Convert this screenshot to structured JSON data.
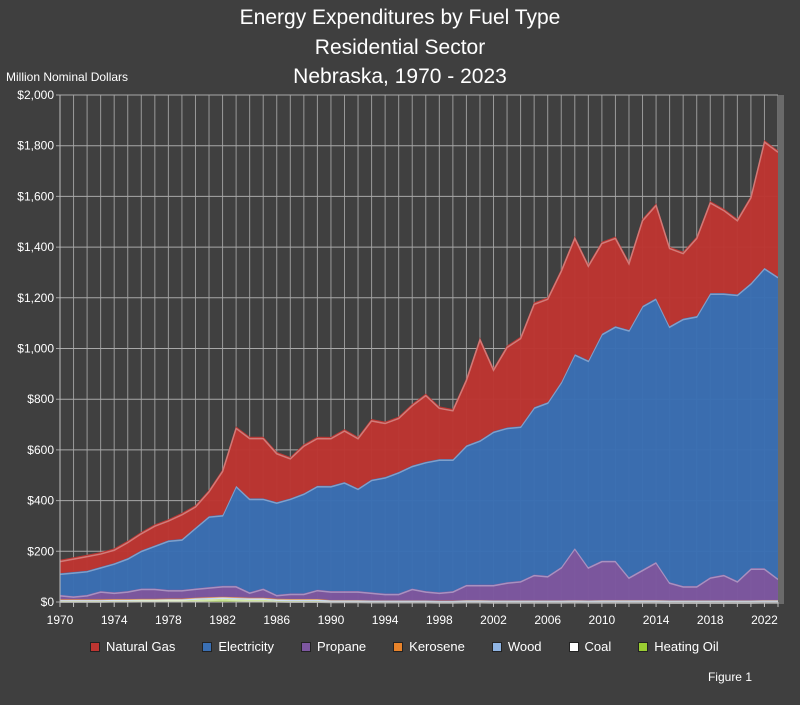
{
  "chart_data": {
    "type": "area",
    "stacked": true,
    "title": [
      "Energy Expenditures by Fuel Type",
      "Residential Sector",
      "Nebraska, 1970 - 2023"
    ],
    "ylabel": "Million Nominal Dollars",
    "ylim": [
      0,
      2000
    ],
    "yticks": [
      "$0",
      "$200",
      "$400",
      "$600",
      "$800",
      "$1,000",
      "$1,200",
      "$1,400",
      "$1,600",
      "$1,800",
      "$2,000"
    ],
    "xticks": [
      "1970",
      "1974",
      "1978",
      "1982",
      "1986",
      "1990",
      "1994",
      "1998",
      "2002",
      "2006",
      "2010",
      "2014",
      "2018",
      "2022"
    ],
    "grid": true,
    "legend": "bottom",
    "x": [
      1970,
      1971,
      1972,
      1973,
      1974,
      1975,
      1976,
      1977,
      1978,
      1979,
      1980,
      1981,
      1982,
      1983,
      1984,
      1985,
      1986,
      1987,
      1988,
      1989,
      1990,
      1991,
      1992,
      1993,
      1994,
      1995,
      1996,
      1997,
      1998,
      1999,
      2000,
      2001,
      2002,
      2003,
      2004,
      2005,
      2006,
      2007,
      2008,
      2009,
      2010,
      2011,
      2012,
      2013,
      2014,
      2015,
      2016,
      2017,
      2018,
      2019,
      2020,
      2021,
      2022,
      2023
    ],
    "series": [
      {
        "name": "Heating Oil",
        "color": "#9acd32",
        "values": [
          5,
          5,
          5,
          5,
          6,
          6,
          7,
          7,
          8,
          8,
          10,
          12,
          14,
          12,
          10,
          10,
          6,
          5,
          5,
          5,
          4,
          4,
          4,
          3,
          3,
          3,
          3,
          3,
          2,
          2,
          3,
          3,
          2,
          2,
          2,
          2,
          2,
          2,
          3,
          2,
          2,
          2,
          2,
          2,
          2,
          1,
          1,
          1,
          1,
          1,
          1,
          1,
          2,
          2
        ]
      },
      {
        "name": "Coal",
        "color": "#ffffff",
        "values": [
          1,
          1,
          1,
          1,
          1,
          1,
          1,
          1,
          1,
          1,
          0.5,
          0.5,
          0.5,
          0.5,
          0.5,
          0.5,
          0.5,
          0.5,
          0.5,
          0.5,
          0,
          0,
          0,
          0,
          0,
          0,
          0,
          0,
          0,
          0,
          0,
          0,
          0,
          0,
          0,
          0,
          0,
          0,
          0,
          0,
          0,
          0,
          0,
          0,
          0,
          0,
          0,
          0,
          0,
          0,
          0,
          0,
          0,
          0
        ]
      },
      {
        "name": "Wood",
        "color": "#8fb4e3",
        "values": [
          3,
          3,
          3,
          3,
          3,
          3,
          3,
          3,
          3,
          3,
          5,
          5,
          5,
          5,
          5,
          5,
          5,
          5,
          5,
          5,
          4,
          4,
          4,
          4,
          4,
          4,
          4,
          4,
          4,
          4,
          5,
          5,
          5,
          5,
          5,
          5,
          5,
          5,
          5,
          5,
          6,
          6,
          6,
          6,
          6,
          6,
          6,
          6,
          6,
          6,
          6,
          6,
          6,
          6
        ]
      },
      {
        "name": "Kerosene",
        "color": "#e8832a",
        "values": [
          3,
          3,
          3,
          3,
          3,
          3,
          3,
          3,
          3,
          3,
          3,
          3,
          3,
          3,
          3,
          3,
          3,
          3,
          3,
          3,
          1,
          1,
          1,
          1,
          1,
          1,
          1,
          1,
          1,
          1,
          1,
          1,
          1,
          1,
          1,
          1,
          1,
          1,
          1,
          1,
          1,
          1,
          1,
          1,
          1,
          1,
          1,
          1,
          1,
          1,
          1,
          1,
          1,
          1
        ]
      },
      {
        "name": "Propane",
        "color": "#7d57a0",
        "values": [
          18,
          13,
          18,
          33,
          27,
          32,
          41,
          41,
          35,
          35,
          37,
          40,
          43,
          45,
          22,
          37,
          16,
          22,
          22,
          37,
          36,
          36,
          36,
          32,
          27,
          27,
          47,
          37,
          33,
          38,
          61,
          61,
          62,
          72,
          77,
          102,
          97,
          132,
          206,
          132,
          156,
          156,
          91,
          121,
          151,
          72,
          57,
          57,
          92,
          102,
          77,
          127,
          126,
          86
        ]
      },
      {
        "name": "Electricity",
        "color": "#3a6fb3",
        "values": [
          85,
          95,
          95,
          95,
          115,
          130,
          150,
          170,
          195,
          200,
          240,
          280,
          280,
          395,
          370,
          355,
          365,
          375,
          395,
          410,
          415,
          430,
          405,
          445,
          460,
          480,
          485,
          510,
          525,
          520,
          550,
          570,
          605,
          610,
          610,
          660,
          685,
          730,
          765,
          815,
          895,
          925,
          975,
          1040,
          1040,
          1010,
          1055,
          1065,
          1120,
          1110,
          1130,
          1125,
          1185,
          1190
        ]
      },
      {
        "name": "Natural Gas",
        "color": "#bd3531",
        "values": [
          50,
          55,
          60,
          55,
          55,
          65,
          70,
          80,
          80,
          100,
          85,
          100,
          175,
          230,
          240,
          240,
          195,
          160,
          190,
          190,
          190,
          205,
          200,
          235,
          215,
          215,
          240,
          265,
          205,
          195,
          260,
          400,
          245,
          320,
          350,
          410,
          410,
          440,
          460,
          375,
          360,
          350,
          265,
          340,
          370,
          310,
          260,
          310,
          360,
          330,
          295,
          340,
          500,
          495
        ]
      }
    ],
    "legend_order": [
      "Natural Gas",
      "Electricity",
      "Propane",
      "Kerosene",
      "Wood",
      "Coal",
      "Heating Oil"
    ]
  },
  "figure_label": "Figure 1"
}
